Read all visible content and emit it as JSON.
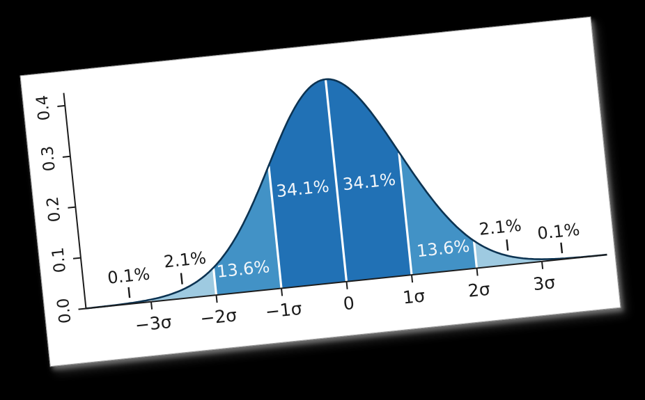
{
  "background_color": "#000000",
  "card": {
    "background": "#ffffff",
    "rotation_deg": -5.9
  },
  "chart_data": {
    "type": "area",
    "description": "Standard normal distribution probability density with standard-deviation bands",
    "curve": {
      "mean": 0,
      "sd": 1,
      "pdf_formula": "exp(-x^2/2)/sqrt(2*pi)",
      "peak_value": 0.3989
    },
    "xlim": [
      -4,
      4
    ],
    "ylim": [
      0,
      0.425
    ],
    "grid": false,
    "legend": false,
    "x_ticks": [
      {
        "value": -3,
        "label": "−3σ"
      },
      {
        "value": -2,
        "label": "−2σ"
      },
      {
        "value": -1,
        "label": "−1σ"
      },
      {
        "value": 0,
        "label": "0"
      },
      {
        "value": 1,
        "label": "1σ"
      },
      {
        "value": 2,
        "label": "2σ"
      },
      {
        "value": 3,
        "label": "3σ"
      }
    ],
    "y_ticks": [
      {
        "value": 0.0,
        "label": "0.0"
      },
      {
        "value": 0.1,
        "label": "0.1"
      },
      {
        "value": 0.2,
        "label": "0.2"
      },
      {
        "value": 0.3,
        "label": "0.3"
      },
      {
        "value": 0.4,
        "label": "0.4"
      }
    ],
    "regions": [
      {
        "from": -4,
        "to": -3,
        "percent": "0.1%",
        "color": "#deebf7"
      },
      {
        "from": -3,
        "to": -2,
        "percent": "2.1%",
        "color": "#9ecae1"
      },
      {
        "from": -2,
        "to": -1,
        "percent": "13.6%",
        "color": "#4292c6"
      },
      {
        "from": -1,
        "to": 0,
        "percent": "34.1%",
        "color": "#2171b5"
      },
      {
        "from": 0,
        "to": 1,
        "percent": "34.1%",
        "color": "#2171b5"
      },
      {
        "from": 1,
        "to": 2,
        "percent": "13.6%",
        "color": "#4292c6"
      },
      {
        "from": 2,
        "to": 3,
        "percent": "2.1%",
        "color": "#9ecae1"
      },
      {
        "from": 3,
        "to": 4,
        "percent": "0.1%",
        "color": "#deebf7"
      }
    ],
    "separators": [
      -3,
      -2,
      -1,
      0,
      1,
      2,
      3
    ],
    "annotations": [
      {
        "text": "0.1%",
        "sigma": -3.3,
        "value": 0.055,
        "style": "dark",
        "pointer": {
          "sigma": -3.32,
          "from": 0.012,
          "to": 0.033
        }
      },
      {
        "text": "2.1%",
        "sigma": -2.42,
        "value": 0.075,
        "style": "dark",
        "pointer": {
          "sigma": -2.5,
          "from": 0.028,
          "to": 0.05
        }
      },
      {
        "text": "13.6%",
        "sigma": -1.55,
        "value": 0.045,
        "style": "light",
        "pointer": null
      },
      {
        "text": "34.1%",
        "sigma": -0.52,
        "value": 0.19,
        "style": "light",
        "pointer": null
      },
      {
        "text": "34.1%",
        "sigma": 0.5,
        "value": 0.19,
        "style": "light",
        "pointer": null
      },
      {
        "text": "13.6%",
        "sigma": 1.52,
        "value": 0.045,
        "style": "light",
        "pointer": null
      },
      {
        "text": "2.1%",
        "sigma": 2.42,
        "value": 0.075,
        "style": "dark",
        "pointer": {
          "sigma": 2.5,
          "from": 0.028,
          "to": 0.05
        }
      },
      {
        "text": "0.1%",
        "sigma": 3.3,
        "value": 0.055,
        "style": "dark",
        "pointer": {
          "sigma": 3.32,
          "from": 0.012,
          "to": 0.033
        }
      }
    ],
    "colors": {
      "curve_stroke": "#0c3352",
      "axis": "#1c1c1c",
      "separator": "#ffffff",
      "label_dark": "#1a1a1a",
      "label_light": "#f2f6fa"
    }
  }
}
